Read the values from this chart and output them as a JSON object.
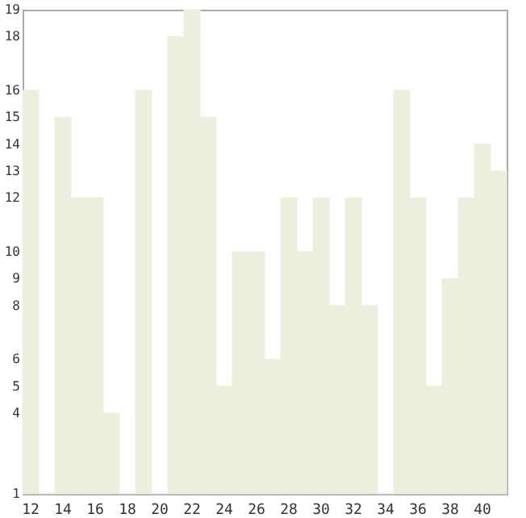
{
  "chart_data": {
    "type": "bar",
    "categories": [
      "12",
      null,
      "14",
      null,
      "16",
      null,
      "18",
      null,
      "20",
      null,
      "22",
      null,
      "24",
      null,
      "26",
      null,
      "28",
      null,
      "30",
      null,
      "32",
      null,
      "34",
      null,
      "36",
      null,
      "38",
      null,
      "40",
      null
    ],
    "values": [
      16,
      1,
      15,
      12,
      12,
      4,
      1,
      16,
      1,
      18,
      19,
      15,
      5,
      10,
      10,
      6,
      12,
      10,
      12,
      8,
      12,
      8,
      1,
      16,
      12,
      5,
      9,
      12,
      14,
      13
    ],
    "color": "#eeeedf",
    "ylim": [
      1,
      19
    ],
    "yticks": [
      1,
      4,
      5,
      6,
      8,
      9,
      10,
      12,
      13,
      14,
      15,
      16,
      18,
      19
    ],
    "grid": false
  }
}
